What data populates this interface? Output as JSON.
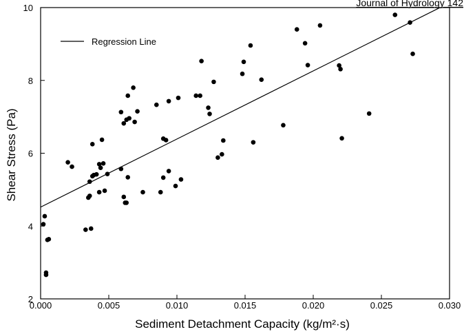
{
  "header": {
    "source": "Journal of Hydrology 142"
  },
  "chart_data": {
    "type": "scatter",
    "title": "",
    "xlabel": "Sediment Detachment Capacity (kg/m²·s)",
    "ylabel": "Shear Stress (Pa)",
    "xlim": [
      0.0,
      0.03
    ],
    "ylim": [
      2,
      10
    ],
    "x_ticks": [
      "0.000",
      "0.005",
      "0.010",
      "0.015",
      "0.020",
      "0.025",
      "0.030"
    ],
    "y_ticks": [
      "2",
      "4",
      "6",
      "8",
      "10"
    ],
    "legend": {
      "position": "top-left",
      "entries": [
        "Regression Line"
      ]
    },
    "regression_line": {
      "x": [
        0.0,
        0.0293
      ],
      "y": [
        4.52,
        10.0
      ]
    },
    "grid": false,
    "series": [
      {
        "x": [
          0.0002,
          0.0003,
          0.0004,
          0.0004,
          0.0005,
          0.0006,
          0.002,
          0.0023,
          0.0033,
          0.0035,
          0.0036,
          0.0036,
          0.0037,
          0.0038,
          0.0038,
          0.0039,
          0.0041,
          0.0043,
          0.0043,
          0.0044,
          0.0045,
          0.0046,
          0.0047,
          0.0049,
          0.0059,
          0.0059,
          0.0061,
          0.0061,
          0.0062,
          0.0063,
          0.0063,
          0.0064,
          0.0064,
          0.0065,
          0.0068,
          0.0069,
          0.0071,
          0.0075,
          0.0085,
          0.0088,
          0.009,
          0.009,
          0.0092,
          0.0094,
          0.0094,
          0.0099,
          0.0101,
          0.0103,
          0.0114,
          0.0117,
          0.0118,
          0.0123,
          0.0124,
          0.0127,
          0.013,
          0.0133,
          0.0134,
          0.0148,
          0.0149,
          0.0154,
          0.0156,
          0.0162,
          0.0178,
          0.0188,
          0.0194,
          0.0196,
          0.0205,
          0.0219,
          0.022,
          0.0221,
          0.0241,
          0.026,
          0.0271,
          0.0273
        ],
        "y": [
          4.05,
          4.27,
          2.66,
          2.72,
          3.62,
          3.64,
          5.75,
          5.63,
          3.9,
          4.78,
          5.22,
          4.83,
          3.93,
          6.25,
          5.37,
          5.4,
          5.42,
          5.7,
          4.93,
          5.6,
          6.37,
          5.72,
          4.97,
          5.43,
          5.57,
          7.13,
          4.8,
          6.82,
          4.64,
          4.64,
          6.92,
          7.58,
          5.34,
          6.96,
          7.8,
          6.86,
          7.15,
          4.93,
          7.33,
          4.93,
          6.4,
          5.33,
          6.36,
          5.51,
          7.43,
          5.1,
          7.52,
          5.28,
          7.58,
          7.58,
          8.53,
          7.25,
          7.08,
          7.96,
          5.88,
          5.97,
          6.35,
          8.18,
          8.51,
          8.96,
          6.3,
          8.02,
          6.77,
          9.4,
          9.02,
          8.42,
          9.51,
          8.41,
          8.31,
          6.41,
          7.09,
          9.8,
          9.59,
          8.73
        ]
      }
    ]
  }
}
